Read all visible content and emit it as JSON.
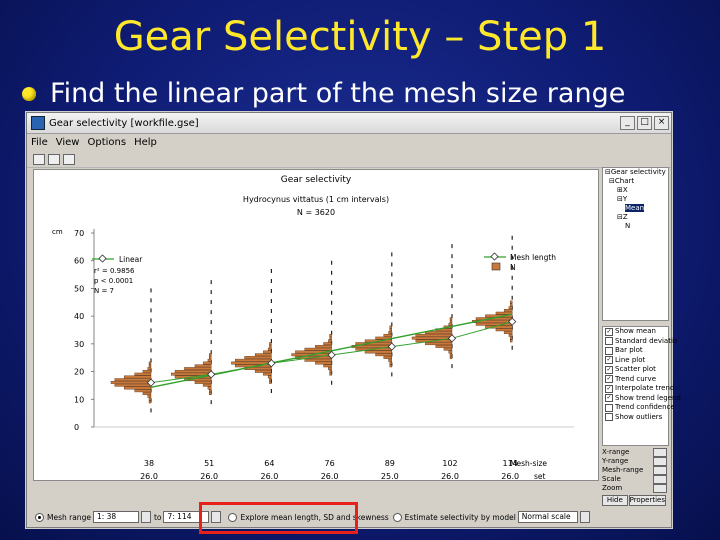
{
  "slide": {
    "title": "Gear Selectivity – Step 1",
    "bullet": "Find the linear part of the mesh size range"
  },
  "window": {
    "title": "Gear selectivity [workfile.gse]",
    "menu": [
      "File",
      "View",
      "Options",
      "Help"
    ]
  },
  "plot": {
    "title": "Gear selectivity",
    "subtitle": "Hydrocynus vittatus (1 cm intervals)",
    "n_label": "N = 3620",
    "y_unit": "cm",
    "legend_left": "Linear",
    "stats": [
      "r² = 0.9856",
      "p < 0.0001",
      "N = 7"
    ],
    "legend_right": [
      "Mesh length",
      "N"
    ],
    "x_label_1": "Mesh-size",
    "x_label_2": "set"
  },
  "chart_data": {
    "type": "scatter",
    "categories": [
      "38",
      "51",
      "64",
      "76",
      "89",
      "102",
      "114"
    ],
    "second_row": [
      "26.0",
      "26.0",
      "26.0",
      "26.0",
      "25.0",
      "26.0",
      "26.0"
    ],
    "y_ticks": [
      0,
      10,
      20,
      30,
      40,
      50,
      60,
      70
    ],
    "ylim": [
      0,
      70
    ],
    "mean_length": [
      16,
      19,
      23,
      26,
      29,
      32,
      38
    ],
    "linear_fit": [
      14.3,
      18.7,
      23.1,
      27.5,
      31.9,
      36.3,
      40.7
    ],
    "grid": false
  },
  "tree": [
    "Gear selectivity",
    "Chart",
    "X",
    "Y",
    "Mean",
    "Z",
    "N"
  ],
  "options": [
    {
      "label": "Show mean",
      "checked": true
    },
    {
      "label": "Standard deviatio",
      "checked": false
    },
    {
      "label": "Bar plot",
      "checked": false
    },
    {
      "label": "Line plot",
      "checked": true
    },
    {
      "label": "Scatter plot",
      "checked": true
    },
    {
      "label": "Trend curve",
      "checked": true
    },
    {
      "label": "Interpolate trend",
      "checked": true
    },
    {
      "label": "Show trend legend",
      "checked": true
    },
    {
      "label": "Trend confidence",
      "checked": false
    },
    {
      "label": "Show outliers",
      "checked": false
    }
  ],
  "controls": {
    "rows": [
      "X-range",
      "Y-range",
      "Mesh-range",
      "Scale",
      "Zoom"
    ],
    "buttons": [
      "Hide",
      "Properties"
    ]
  },
  "bottom": {
    "mesh_label": "Mesh range",
    "from_value": "1: 38",
    "to_label": "to",
    "to_value": "7: 114",
    "option1": "Explore mean length, SD and skewness",
    "option2": "Estimate selectivity by model",
    "scale_value": "Normal scale"
  },
  "colors": {
    "title_yellow": "#ffe82a",
    "highlight_red": "#e8201a",
    "histogram_fill": "#c87a3c",
    "trend_green": "#33a02c"
  }
}
